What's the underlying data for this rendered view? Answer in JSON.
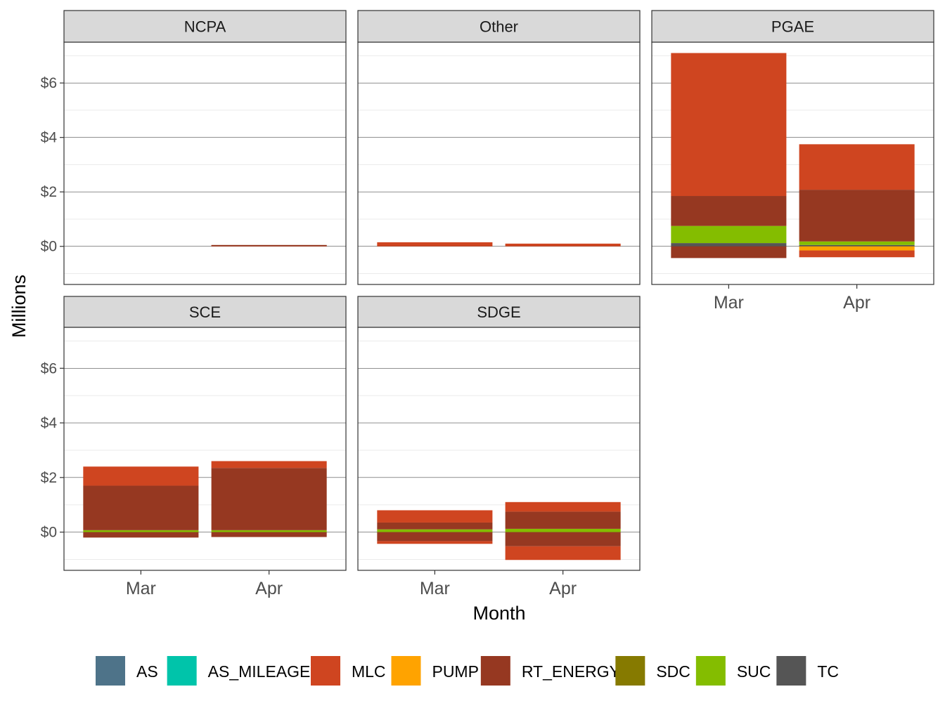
{
  "chart_data": {
    "type": "bar",
    "stacked": true,
    "facet_by": "region",
    "xlabel": "Month",
    "ylabel": "Millions",
    "categories": [
      "Mar",
      "Apr"
    ],
    "ylim": [
      -1.4,
      7.5
    ],
    "yticks": [
      0,
      2,
      4,
      6
    ],
    "ytick_labels": [
      "$0",
      "$2",
      "$4",
      "$6"
    ],
    "grid": true,
    "legend_position": "bottom",
    "legend": [
      {
        "name": "AS",
        "color": "#4e7389"
      },
      {
        "name": "AS_MILEAGE",
        "color": "#00c4aa"
      },
      {
        "name": "MLC",
        "color": "#cf4520"
      },
      {
        "name": "PUMP",
        "color": "#ffa300"
      },
      {
        "name": "RT_ENERGY",
        "color": "#963821"
      },
      {
        "name": "SDC",
        "color": "#867a00"
      },
      {
        "name": "SUC",
        "color": "#84bd00"
      },
      {
        "name": "TC",
        "color": "#555555"
      }
    ],
    "panels": [
      {
        "title": "NCPA",
        "series": [
          {
            "name": "MLC",
            "values": [
              0.0,
              0.04
            ]
          },
          {
            "name": "RT_ENERGY",
            "values": [
              0.0,
              0.01
            ]
          }
        ]
      },
      {
        "title": "Other",
        "series": [
          {
            "name": "MLC",
            "values": [
              0.15,
              0.1
            ]
          },
          {
            "name": "RT_ENERGY",
            "values": [
              0.0,
              0.0
            ]
          }
        ]
      },
      {
        "title": "PGAE",
        "series": [
          {
            "name": "TC",
            "values": [
              0.12,
              0.05
            ]
          },
          {
            "name": "SUC",
            "values": [
              0.63,
              0.13
            ]
          },
          {
            "name": "RT_ENERGY",
            "values": [
              1.1,
              1.9
            ]
          },
          {
            "name": "MLC",
            "values": [
              5.25,
              1.67
            ]
          },
          {
            "name": "PUMP",
            "values": [
              0.0,
              -0.15
            ]
          },
          {
            "name": "RT_ENERGY",
            "values": [
              -0.43,
              0.0
            ]
          },
          {
            "name": "MLC",
            "values": [
              0.0,
              -0.25
            ]
          }
        ]
      },
      {
        "title": "SCE",
        "series": [
          {
            "name": "SUC",
            "values": [
              0.07,
              0.07
            ]
          },
          {
            "name": "RT_ENERGY",
            "values": [
              1.63,
              2.28
            ]
          },
          {
            "name": "MLC",
            "values": [
              0.7,
              0.25
            ]
          },
          {
            "name": "RT_ENERGY",
            "values": [
              -0.2,
              -0.18
            ]
          }
        ]
      },
      {
        "title": "SDGE",
        "series": [
          {
            "name": "SUC",
            "values": [
              0.1,
              0.12
            ]
          },
          {
            "name": "RT_ENERGY",
            "values": [
              0.25,
              0.63
            ]
          },
          {
            "name": "MLC",
            "values": [
              0.45,
              0.35
            ]
          },
          {
            "name": "RT_ENERGY",
            "values": [
              -0.33,
              -0.52
            ]
          },
          {
            "name": "MLC",
            "values": [
              -0.1,
              -0.5
            ]
          }
        ]
      }
    ]
  }
}
